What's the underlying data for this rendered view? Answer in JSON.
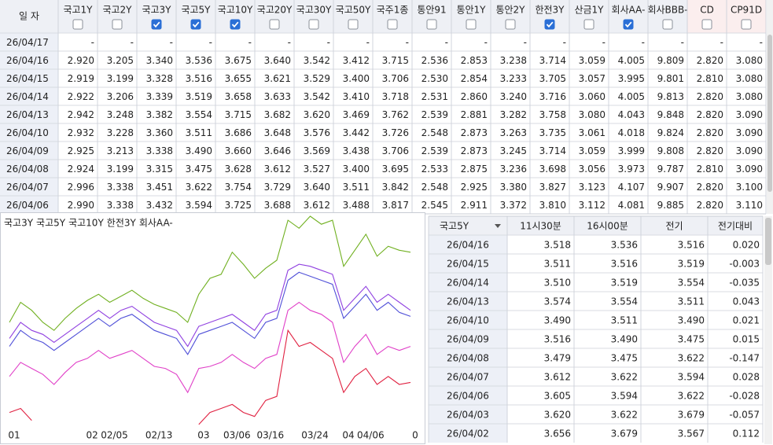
{
  "top_table": {
    "date_header": "일 자",
    "columns": [
      {
        "name": "국고1Y",
        "checked": false
      },
      {
        "name": "국고2Y",
        "checked": false
      },
      {
        "name": "국고3Y",
        "checked": true
      },
      {
        "name": "국고5Y",
        "checked": true
      },
      {
        "name": "국고10Y",
        "checked": true
      },
      {
        "name": "국고20Y",
        "checked": false
      },
      {
        "name": "국고30Y",
        "checked": false
      },
      {
        "name": "국고50Y",
        "checked": false
      },
      {
        "name": "국주1종",
        "checked": false
      },
      {
        "name": "통안91",
        "checked": false
      },
      {
        "name": "통안1Y",
        "checked": false
      },
      {
        "name": "통안2Y",
        "checked": false
      },
      {
        "name": "한전3Y",
        "checked": true
      },
      {
        "name": "산금1Y",
        "checked": false
      },
      {
        "name": "회사AA-",
        "checked": true
      },
      {
        "name": "회사BBB-",
        "checked": false
      },
      {
        "name": "CD",
        "checked": false
      },
      {
        "name": "CP91D",
        "checked": false
      }
    ],
    "rows": [
      {
        "date": "26/04/17",
        "values": [
          "-",
          "-",
          "-",
          "-",
          "-",
          "-",
          "-",
          "-",
          "-",
          "-",
          "-",
          "-",
          "-",
          "-",
          "-",
          "-",
          "-",
          "-"
        ]
      },
      {
        "date": "26/04/16",
        "values": [
          "2.920",
          "3.205",
          "3.340",
          "3.536",
          "3.675",
          "3.640",
          "3.542",
          "3.412",
          "3.715",
          "2.536",
          "2.853",
          "3.238",
          "3.714",
          "3.059",
          "4.005",
          "9.809",
          "2.820",
          "3.080"
        ]
      },
      {
        "date": "26/04/15",
        "values": [
          "2.919",
          "3.199",
          "3.328",
          "3.516",
          "3.655",
          "3.621",
          "3.529",
          "3.400",
          "3.706",
          "2.530",
          "2.854",
          "3.233",
          "3.705",
          "3.057",
          "3.995",
          "9.801",
          "2.810",
          "3.080"
        ]
      },
      {
        "date": "26/04/14",
        "values": [
          "2.922",
          "3.206",
          "3.339",
          "3.519",
          "3.658",
          "3.633",
          "3.542",
          "3.410",
          "3.718",
          "2.531",
          "2.860",
          "3.240",
          "3.716",
          "3.060",
          "4.005",
          "9.813",
          "2.820",
          "3.080"
        ]
      },
      {
        "date": "26/04/13",
        "values": [
          "2.942",
          "3.248",
          "3.382",
          "3.554",
          "3.715",
          "3.682",
          "3.620",
          "3.469",
          "3.762",
          "2.539",
          "2.881",
          "3.282",
          "3.758",
          "3.080",
          "4.043",
          "9.848",
          "2.820",
          "3.090"
        ]
      },
      {
        "date": "26/04/10",
        "values": [
          "2.932",
          "3.228",
          "3.360",
          "3.511",
          "3.686",
          "3.648",
          "3.576",
          "3.442",
          "3.726",
          "2.548",
          "2.873",
          "3.263",
          "3.735",
          "3.061",
          "4.018",
          "9.824",
          "2.820",
          "3.090"
        ]
      },
      {
        "date": "26/04/09",
        "values": [
          "2.925",
          "3.213",
          "3.338",
          "3.490",
          "3.660",
          "3.646",
          "3.569",
          "3.438",
          "3.706",
          "2.539",
          "2.873",
          "3.245",
          "3.714",
          "3.059",
          "3.999",
          "9.808",
          "2.820",
          "3.090"
        ]
      },
      {
        "date": "26/04/08",
        "values": [
          "2.924",
          "3.199",
          "3.315",
          "3.475",
          "3.628",
          "3.612",
          "3.527",
          "3.400",
          "3.695",
          "2.533",
          "2.875",
          "3.236",
          "3.698",
          "3.056",
          "3.973",
          "9.787",
          "2.810",
          "3.090"
        ]
      },
      {
        "date": "26/04/07",
        "values": [
          "2.996",
          "3.338",
          "3.451",
          "3.622",
          "3.754",
          "3.729",
          "3.640",
          "3.511",
          "3.842",
          "2.548",
          "2.925",
          "3.380",
          "3.827",
          "3.123",
          "4.107",
          "9.907",
          "2.820",
          "3.100"
        ]
      },
      {
        "date": "26/04/06",
        "values": [
          "2.990",
          "3.338",
          "3.432",
          "3.594",
          "3.725",
          "3.688",
          "3.612",
          "3.488",
          "3.817",
          "2.545",
          "2.911",
          "3.372",
          "3.810",
          "3.112",
          "4.081",
          "9.885",
          "2.820",
          "3.110"
        ]
      }
    ]
  },
  "chart_data": {
    "type": "line",
    "categories": [
      "01",
      null,
      null,
      null,
      null,
      null,
      null,
      "02",
      null,
      "02/05",
      null,
      null,
      null,
      "02/13",
      null,
      null,
      null,
      "03",
      null,
      null,
      "03/06",
      null,
      null,
      "03/16",
      null,
      null,
      null,
      "03/24",
      null,
      null,
      "04",
      null,
      "04/06",
      null,
      null,
      null,
      "0"
    ],
    "ylim": [
      3.12,
      4.18
    ],
    "series": [
      {
        "name": "국고3Y",
        "color": "#e02040",
        "values": [
          3.2,
          3.22,
          3.16,
          null,
          null,
          null,
          null,
          null,
          null,
          null,
          null,
          null,
          null,
          null,
          null,
          null,
          null,
          3.14,
          3.2,
          3.22,
          3.24,
          3.2,
          3.18,
          3.26,
          3.28,
          3.61,
          3.53,
          3.55,
          3.51,
          3.47,
          3.3,
          3.38,
          3.42,
          3.34,
          3.38,
          3.34,
          3.35
        ]
      },
      {
        "name": "국고5Y",
        "color": "#e040c8",
        "values": [
          3.38,
          3.45,
          3.42,
          3.39,
          3.34,
          3.4,
          3.45,
          3.47,
          3.51,
          3.47,
          3.49,
          3.51,
          3.47,
          3.43,
          3.42,
          3.39,
          3.3,
          3.42,
          3.43,
          3.45,
          3.49,
          3.45,
          3.42,
          3.47,
          3.49,
          3.71,
          3.75,
          3.71,
          3.69,
          3.65,
          3.45,
          3.53,
          3.59,
          3.49,
          3.53,
          3.51,
          3.53
        ]
      },
      {
        "name": "국고10Y",
        "color": "#5050d8",
        "values": [
          3.53,
          3.61,
          3.57,
          3.55,
          3.51,
          3.55,
          3.59,
          3.63,
          3.67,
          3.63,
          3.67,
          3.69,
          3.65,
          3.61,
          3.59,
          3.57,
          3.49,
          3.59,
          3.61,
          3.63,
          3.65,
          3.61,
          3.57,
          3.65,
          3.67,
          3.86,
          3.9,
          3.88,
          3.86,
          3.84,
          3.67,
          3.73,
          3.79,
          3.71,
          3.75,
          3.7,
          3.68
        ]
      },
      {
        "name": "한전3Y",
        "color": "#9040e0",
        "values": [
          3.57,
          3.65,
          3.61,
          3.59,
          3.55,
          3.59,
          3.63,
          3.67,
          3.71,
          3.67,
          3.71,
          3.73,
          3.69,
          3.65,
          3.63,
          3.61,
          3.53,
          3.63,
          3.65,
          3.67,
          3.69,
          3.65,
          3.61,
          3.69,
          3.71,
          3.91,
          3.94,
          3.93,
          3.91,
          3.89,
          3.71,
          3.77,
          3.83,
          3.75,
          3.79,
          3.75,
          3.71
        ]
      },
      {
        "name": "회사AA-",
        "color": "#70b020",
        "values": [
          3.65,
          3.75,
          3.71,
          3.65,
          3.61,
          3.67,
          3.72,
          3.76,
          3.79,
          3.75,
          3.78,
          3.81,
          3.77,
          3.74,
          3.72,
          3.7,
          3.65,
          3.79,
          3.87,
          3.89,
          4.0,
          3.94,
          3.87,
          3.92,
          3.96,
          4.16,
          4.12,
          4.18,
          4.14,
          4.16,
          3.93,
          4.01,
          4.09,
          3.98,
          4.03,
          4.01,
          4.0
        ]
      }
    ]
  },
  "side_table": {
    "selector": "국고5Y",
    "headers": [
      "11시30분",
      "16시00분",
      "전기",
      "전기대비"
    ],
    "rows": [
      {
        "date": "26/04/16",
        "values": [
          "3.518",
          "3.536",
          "3.516",
          "0.020"
        ]
      },
      {
        "date": "26/04/15",
        "values": [
          "3.511",
          "3.516",
          "3.519",
          "-0.003"
        ]
      },
      {
        "date": "26/04/14",
        "values": [
          "3.510",
          "3.519",
          "3.554",
          "-0.035"
        ]
      },
      {
        "date": "26/04/13",
        "values": [
          "3.574",
          "3.554",
          "3.511",
          "0.043"
        ]
      },
      {
        "date": "26/04/10",
        "values": [
          "3.490",
          "3.511",
          "3.490",
          "0.021"
        ]
      },
      {
        "date": "26/04/09",
        "values": [
          "3.516",
          "3.490",
          "3.475",
          "0.015"
        ]
      },
      {
        "date": "26/04/08",
        "values": [
          "3.479",
          "3.475",
          "3.622",
          "-0.147"
        ]
      },
      {
        "date": "26/04/07",
        "values": [
          "3.612",
          "3.622",
          "3.594",
          "0.028"
        ]
      },
      {
        "date": "26/04/06",
        "values": [
          "3.605",
          "3.594",
          "3.622",
          "-0.028"
        ]
      },
      {
        "date": "26/04/03",
        "values": [
          "3.620",
          "3.622",
          "3.679",
          "-0.057"
        ]
      },
      {
        "date": "26/04/02",
        "values": [
          "3.656",
          "3.679",
          "3.567",
          "0.112"
        ]
      }
    ]
  }
}
